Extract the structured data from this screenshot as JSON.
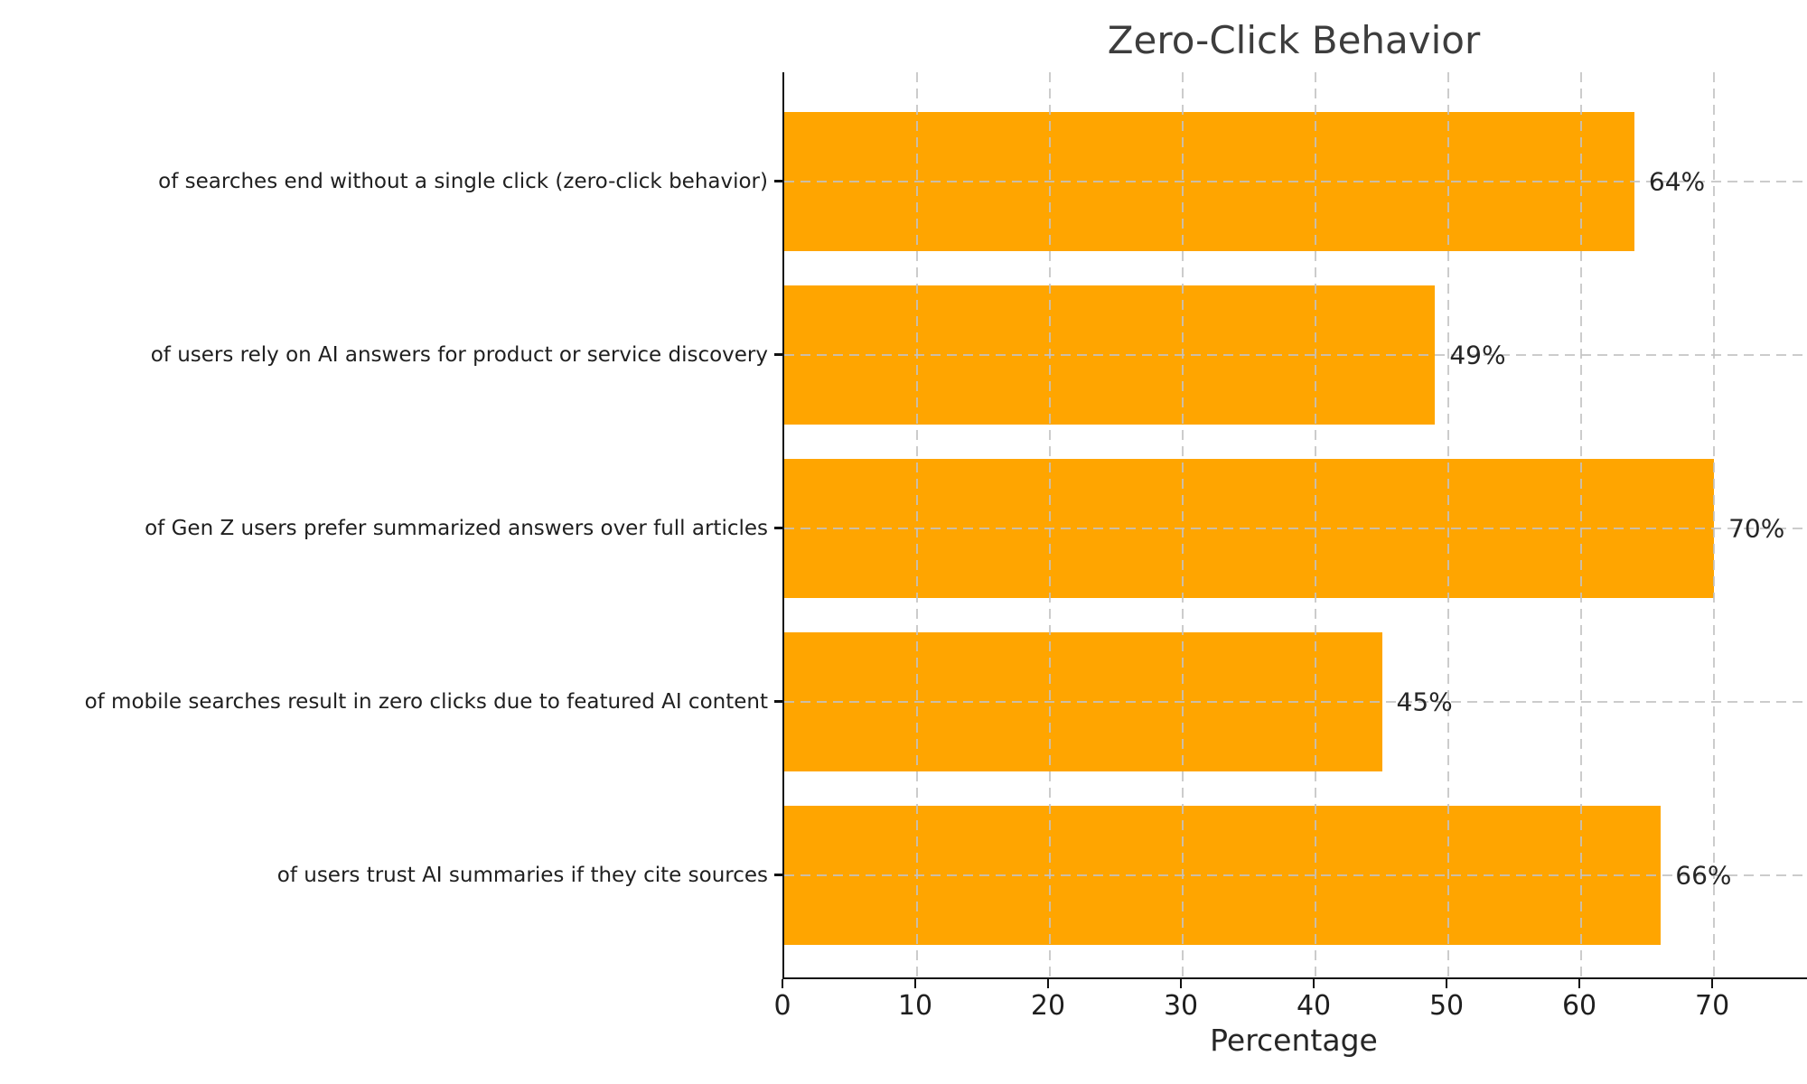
{
  "chart_data": {
    "type": "bar",
    "orientation": "horizontal",
    "title": "Zero-Click Behavior",
    "xlabel": "Percentage",
    "categories": [
      "of searches end without a single click (zero-click behavior)",
      "of users rely on AI answers for product or service discovery",
      "of Gen Z users prefer summarized answers over full articles",
      "of mobile searches result in zero clicks due to featured AI content",
      "of users trust AI summaries if they cite sources"
    ],
    "values": [
      64,
      49,
      70,
      45,
      66
    ],
    "value_labels": [
      "64%",
      "49%",
      "70%",
      "45%",
      "66%"
    ],
    "xlim": [
      0,
      77
    ],
    "xticks": [
      0,
      10,
      20,
      30,
      40,
      50,
      60,
      70
    ],
    "grid": "dashed",
    "legend": "none",
    "bar_color": "#FFA500",
    "grid_color": "#c3c3c3",
    "axis_color": "#111111",
    "text_color": "#262626",
    "title_color": "#3d3d3d"
  }
}
